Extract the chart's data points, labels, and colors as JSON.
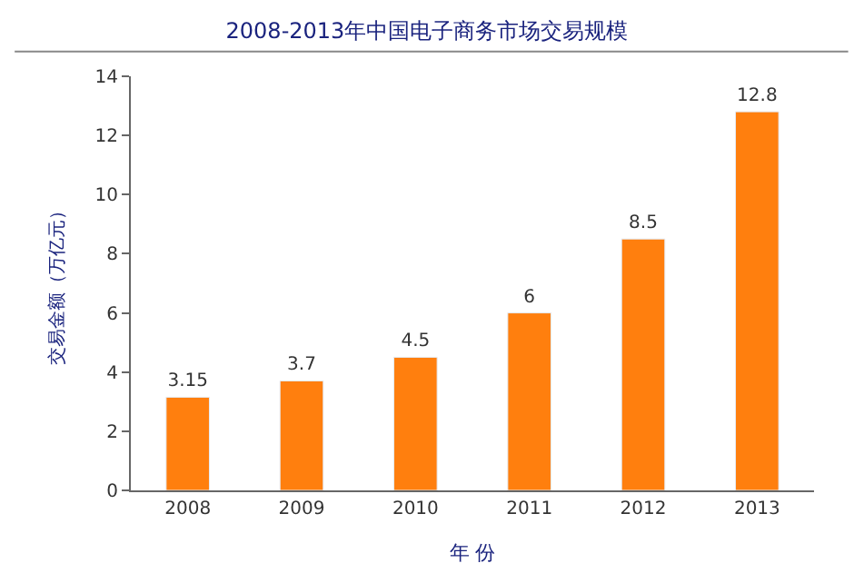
{
  "chart_data": {
    "type": "bar",
    "title": "2008-2013年中国电子商务市场交易规模",
    "xlabel": "年 份",
    "ylabel": "交易金额（万亿元）",
    "categories": [
      "2008",
      "2009",
      "2010",
      "2011",
      "2012",
      "2013"
    ],
    "values": [
      3.15,
      3.7,
      4.5,
      6,
      8.5,
      12.8
    ],
    "value_labels": [
      "3.15",
      "3.7",
      "4.5",
      "6",
      "8.5",
      "12.8"
    ],
    "color": "#ff7f0e",
    "ylim": [
      0,
      14
    ],
    "yticks": [
      0,
      2,
      4,
      6,
      8,
      10,
      12,
      14
    ]
  }
}
